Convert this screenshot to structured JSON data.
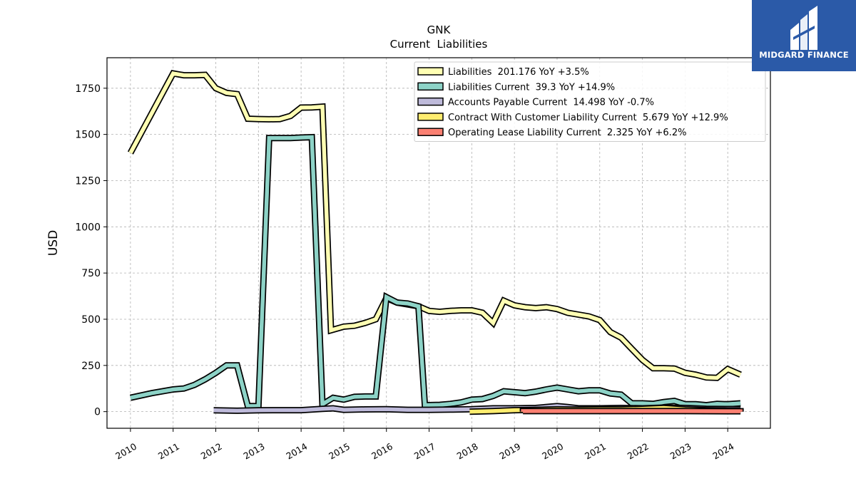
{
  "brand": {
    "name": "MIDGARD FINANCE",
    "bg_color": "#2b5aa8"
  },
  "chart_data": {
    "type": "line",
    "title": "GNK",
    "subtitle": "Current  Liabilities",
    "ylabel": "USD",
    "xlabel": "",
    "xlim": [
      2009.45,
      2025.0
    ],
    "ylim": [
      -90,
      1915
    ],
    "grid": true,
    "legend_position": "top-right",
    "x_ticks": [
      2010,
      2011,
      2012,
      2013,
      2014,
      2015,
      2016,
      2017,
      2018,
      2019,
      2020,
      2021,
      2022,
      2023,
      2024
    ],
    "x_tick_labels": [
      "2010",
      "2011",
      "2012",
      "2013",
      "2014",
      "2015",
      "2016",
      "2017",
      "2018",
      "2019",
      "2020",
      "2021",
      "2022",
      "2023",
      "2024"
    ],
    "y_ticks": [
      0,
      250,
      500,
      750,
      1000,
      1250,
      1500,
      1750
    ],
    "y_tick_labels": [
      "0",
      "250",
      "500",
      "750",
      "1000",
      "1250",
      "1500",
      "1750"
    ],
    "series": [
      {
        "name": "Liabilities",
        "legend": "Liabilities  201.176 YoY +3.5%",
        "color": "#ffffb3",
        "points": [
          [
            2010.0,
            1400
          ],
          [
            2011.0,
            1830
          ],
          [
            2011.25,
            1820
          ],
          [
            2011.5,
            1820
          ],
          [
            2011.75,
            1822
          ],
          [
            2012.0,
            1750
          ],
          [
            2012.25,
            1725
          ],
          [
            2012.5,
            1718
          ],
          [
            2012.75,
            1585
          ],
          [
            2013.0,
            1583
          ],
          [
            2013.25,
            1582
          ],
          [
            2013.5,
            1583
          ],
          [
            2013.75,
            1600
          ],
          [
            2014.0,
            1645
          ],
          [
            2014.25,
            1646
          ],
          [
            2014.5,
            1650
          ],
          [
            2014.7,
            440
          ],
          [
            2015.0,
            460
          ],
          [
            2015.25,
            465
          ],
          [
            2015.5,
            480
          ],
          [
            2015.75,
            500
          ],
          [
            2016.0,
            615
          ],
          [
            2016.25,
            590
          ],
          [
            2016.5,
            580
          ],
          [
            2016.75,
            570
          ],
          [
            2017.0,
            545
          ],
          [
            2017.25,
            540
          ],
          [
            2017.5,
            545
          ],
          [
            2017.75,
            548
          ],
          [
            2018.0,
            548
          ],
          [
            2018.25,
            535
          ],
          [
            2018.5,
            480
          ],
          [
            2018.75,
            600
          ],
          [
            2019.0,
            575
          ],
          [
            2019.25,
            565
          ],
          [
            2019.5,
            560
          ],
          [
            2019.75,
            565
          ],
          [
            2020.0,
            555
          ],
          [
            2020.25,
            535
          ],
          [
            2020.5,
            525
          ],
          [
            2020.75,
            515
          ],
          [
            2021.0,
            495
          ],
          [
            2021.25,
            430
          ],
          [
            2021.5,
            400
          ],
          [
            2021.75,
            340
          ],
          [
            2022.0,
            280
          ],
          [
            2022.25,
            235
          ],
          [
            2022.5,
            235
          ],
          [
            2022.75,
            233
          ],
          [
            2023.0,
            210
          ],
          [
            2023.25,
            200
          ],
          [
            2023.5,
            185
          ],
          [
            2023.75,
            183
          ],
          [
            2024.0,
            230
          ],
          [
            2024.3,
            200
          ]
        ]
      },
      {
        "name": "Liabilities Current",
        "legend": "Liabilities Current  39.3 YoY +14.9%",
        "color": "#8dd3c7",
        "points": [
          [
            2010.0,
            75
          ],
          [
            2010.5,
            100
          ],
          [
            2011.0,
            120
          ],
          [
            2011.25,
            125
          ],
          [
            2011.5,
            145
          ],
          [
            2011.75,
            175
          ],
          [
            2012.0,
            210
          ],
          [
            2012.25,
            250
          ],
          [
            2012.5,
            250
          ],
          [
            2012.75,
            30
          ],
          [
            2013.0,
            30
          ],
          [
            2013.25,
            1480
          ],
          [
            2013.5,
            1480
          ],
          [
            2013.75,
            1480
          ],
          [
            2014.0,
            1483
          ],
          [
            2014.25,
            1485
          ],
          [
            2014.5,
            40
          ],
          [
            2014.75,
            75
          ],
          [
            2015.0,
            65
          ],
          [
            2015.25,
            80
          ],
          [
            2015.5,
            82
          ],
          [
            2015.75,
            82
          ],
          [
            2016.0,
            620
          ],
          [
            2016.25,
            590
          ],
          [
            2016.5,
            585
          ],
          [
            2016.75,
            570
          ],
          [
            2016.9,
            35
          ],
          [
            2017.25,
            37
          ],
          [
            2017.5,
            42
          ],
          [
            2017.75,
            50
          ],
          [
            2018.0,
            65
          ],
          [
            2018.25,
            68
          ],
          [
            2018.5,
            85
          ],
          [
            2018.75,
            110
          ],
          [
            2019.0,
            105
          ],
          [
            2019.25,
            100
          ],
          [
            2019.5,
            108
          ],
          [
            2019.75,
            120
          ],
          [
            2020.0,
            130
          ],
          [
            2020.25,
            120
          ],
          [
            2020.5,
            110
          ],
          [
            2020.75,
            115
          ],
          [
            2021.0,
            115
          ],
          [
            2021.25,
            98
          ],
          [
            2021.5,
            92
          ],
          [
            2021.75,
            45
          ],
          [
            2022.0,
            45
          ],
          [
            2022.25,
            42
          ],
          [
            2022.5,
            52
          ],
          [
            2022.75,
            58
          ],
          [
            2023.0,
            40
          ],
          [
            2023.25,
            40
          ],
          [
            2023.5,
            35
          ],
          [
            2023.75,
            42
          ],
          [
            2024.0,
            40
          ],
          [
            2024.3,
            45
          ]
        ]
      },
      {
        "name": "Accounts Payable Current",
        "legend": "Accounts Payable Current  14.498 YoY -0.7%",
        "color": "#bebada",
        "points": [
          [
            2011.95,
            7
          ],
          [
            2012.5,
            5
          ],
          [
            2013.0,
            7
          ],
          [
            2013.5,
            8
          ],
          [
            2014.0,
            8
          ],
          [
            2014.5,
            15
          ],
          [
            2014.75,
            18
          ],
          [
            2015.0,
            10
          ],
          [
            2015.5,
            12
          ],
          [
            2016.0,
            13
          ],
          [
            2016.5,
            10
          ],
          [
            2017.0,
            10
          ],
          [
            2017.5,
            11
          ],
          [
            2018.0,
            13
          ],
          [
            2018.5,
            18
          ],
          [
            2019.0,
            18
          ],
          [
            2019.5,
            20
          ],
          [
            2020.0,
            30
          ],
          [
            2020.25,
            25
          ],
          [
            2020.5,
            18
          ],
          [
            2021.0,
            18
          ],
          [
            2021.5,
            20
          ],
          [
            2022.0,
            18
          ],
          [
            2022.5,
            22
          ],
          [
            2023.0,
            20
          ],
          [
            2023.5,
            15
          ],
          [
            2024.0,
            14
          ],
          [
            2024.3,
            14
          ]
        ]
      },
      {
        "name": "Contract With Customer Liability Current",
        "legend": "Contract With Customer Liability Current  5.679 YoY +12.9%",
        "color": "#ffed6f",
        "points": [
          [
            2017.95,
            0
          ],
          [
            2018.5,
            3
          ],
          [
            2019.0,
            8
          ],
          [
            2019.5,
            10
          ],
          [
            2020.0,
            12
          ],
          [
            2020.5,
            11
          ],
          [
            2021.0,
            12
          ],
          [
            2021.5,
            12
          ],
          [
            2022.0,
            15
          ],
          [
            2022.5,
            20
          ],
          [
            2023.0,
            12
          ],
          [
            2023.5,
            8
          ],
          [
            2024.0,
            6
          ],
          [
            2024.3,
            6
          ]
        ]
      },
      {
        "name": "Operating Lease Liability Current",
        "legend": "Operating Lease Liability Current  2.325 YoY +6.2%",
        "color": "#fb8072",
        "points": [
          [
            2019.2,
            0
          ],
          [
            2019.2,
            3
          ],
          [
            2020.0,
            3
          ],
          [
            2021.0,
            3
          ],
          [
            2022.0,
            3
          ],
          [
            2023.0,
            3
          ],
          [
            2024.0,
            2
          ],
          [
            2024.3,
            2
          ],
          [
            2024.3,
            0
          ]
        ]
      }
    ]
  }
}
